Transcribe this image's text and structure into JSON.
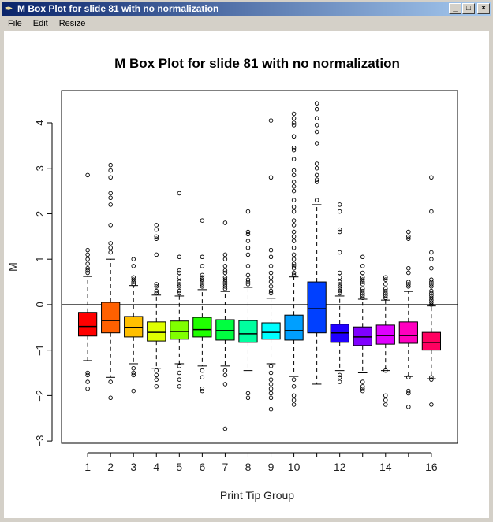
{
  "window": {
    "title": "M Box Plot for slide 81 with no normalization",
    "app_icon": "r-feather-icon",
    "buttons": [
      "minimize",
      "maximize",
      "close"
    ]
  },
  "menu": [
    "File",
    "Edit",
    "Resize"
  ],
  "chart_data": {
    "type": "box",
    "title": "M Box Plot for slide 81 with no normalization",
    "xlabel": "Print Tip Group",
    "ylabel": "M",
    "ylim": [
      -3.05,
      4.71
    ],
    "xlim": [
      0.5,
      16.5
    ],
    "yticks": [
      -3,
      -2,
      -1,
      0,
      1,
      2,
      3,
      4
    ],
    "xtick_labels": [
      "1",
      "2",
      "3",
      "4",
      "5",
      "6",
      "7",
      "8",
      "9",
      "10",
      "12",
      "14",
      "16"
    ],
    "xtick_positions": [
      1,
      2,
      3,
      4,
      5,
      6,
      7,
      8,
      9,
      10,
      12,
      14,
      16
    ],
    "reference_line_y": 0,
    "grid": false,
    "groups": [
      {
        "group": 1,
        "color": "#FF0000",
        "whisker_low": -1.23,
        "q1": -0.69,
        "median": -0.48,
        "q3": -0.17,
        "whisker_high": 0.62,
        "outliers": [
          2.85,
          1.2,
          1.1,
          1.0,
          0.9,
          0.8,
          0.75,
          0.7,
          -1.5,
          -1.55,
          -1.7,
          -1.85
        ]
      },
      {
        "group": 2,
        "color": "#FF6000",
        "whisker_low": -1.6,
        "q1": -0.62,
        "median": -0.35,
        "q3": 0.05,
        "whisker_high": 1.0,
        "outliers": [
          3.07,
          2.95,
          2.8,
          2.45,
          2.35,
          2.2,
          1.75,
          1.35,
          1.25,
          1.15,
          -1.7,
          -2.05
        ]
      },
      {
        "group": 3,
        "color": "#FFBF00",
        "whisker_low": -1.3,
        "q1": -0.71,
        "median": -0.5,
        "q3": -0.26,
        "whisker_high": 0.42,
        "outliers": [
          1.0,
          0.85,
          0.6,
          0.55,
          0.5,
          0.45,
          -1.4,
          -1.5,
          -1.55,
          -1.9
        ]
      },
      {
        "group": 4,
        "color": "#DFFF00",
        "whisker_low": -1.4,
        "q1": -0.8,
        "median": -0.61,
        "q3": -0.38,
        "whisker_high": 0.21,
        "outliers": [
          1.75,
          1.65,
          1.5,
          1.45,
          1.1,
          0.45,
          0.4,
          0.3,
          0.25,
          -1.45,
          -1.55,
          -1.65,
          -1.8
        ]
      },
      {
        "group": 5,
        "color": "#80FF00",
        "whisker_low": -1.3,
        "q1": -0.76,
        "median": -0.59,
        "q3": -0.36,
        "whisker_high": 0.19,
        "outliers": [
          2.45,
          1.05,
          0.75,
          0.7,
          0.6,
          0.5,
          0.45,
          0.4,
          0.3,
          0.25,
          -1.35,
          -1.5,
          -1.65,
          -1.8
        ]
      },
      {
        "group": 6,
        "color": "#20FF00",
        "whisker_low": -1.35,
        "q1": -0.71,
        "median": -0.55,
        "q3": -0.28,
        "whisker_high": 0.33,
        "outliers": [
          1.85,
          1.05,
          0.85,
          0.65,
          0.6,
          0.55,
          0.5,
          0.45,
          0.4,
          -1.45,
          -1.6,
          -1.85,
          -1.9
        ]
      },
      {
        "group": 7,
        "color": "#00FF40",
        "whisker_low": -1.35,
        "q1": -0.78,
        "median": -0.57,
        "q3": -0.33,
        "whisker_high": 0.29,
        "outliers": [
          1.8,
          1.1,
          1.0,
          0.85,
          0.75,
          0.7,
          0.6,
          0.55,
          0.5,
          0.45,
          0.4,
          0.35,
          -1.45,
          -1.55,
          -1.75,
          -2.73
        ]
      },
      {
        "group": 8,
        "color": "#00FF9F",
        "whisker_low": -1.45,
        "q1": -0.83,
        "median": -0.64,
        "q3": -0.35,
        "whisker_high": 0.38,
        "outliers": [
          2.05,
          1.6,
          1.55,
          1.4,
          1.25,
          1.1,
          0.85,
          0.65,
          0.55,
          0.5,
          0.45,
          -1.95,
          -2.05
        ]
      },
      {
        "group": 9,
        "color": "#00FFFF",
        "whisker_low": -1.3,
        "q1": -0.76,
        "median": -0.61,
        "q3": -0.4,
        "whisker_high": 0.14,
        "outliers": [
          4.05,
          2.8,
          1.2,
          1.05,
          0.85,
          0.7,
          0.6,
          0.5,
          0.4,
          0.3,
          0.25,
          -1.35,
          -1.5,
          -1.65,
          -1.75,
          -1.85,
          -1.95,
          -2.05,
          -2.3
        ]
      },
      {
        "group": 10,
        "color": "#009FFF",
        "whisker_low": -1.58,
        "q1": -0.78,
        "median": -0.57,
        "q3": -0.23,
        "whisker_high": 0.61,
        "outliers": [
          4.2,
          4.1,
          4.0,
          3.95,
          3.7,
          3.45,
          3.4,
          3.2,
          2.95,
          2.85,
          2.7,
          2.6,
          2.5,
          2.3,
          2.15,
          2.05,
          1.85,
          1.75,
          1.6,
          1.5,
          1.4,
          1.25,
          1.1,
          1.0,
          0.9,
          0.85,
          0.8,
          0.7,
          0.65,
          -1.65,
          -1.8,
          -2.0,
          -2.1,
          -2.2
        ]
      },
      {
        "group": 11,
        "color": "#0040FF",
        "whisker_low": -1.75,
        "q1": -0.62,
        "median": -0.09,
        "q3": 0.5,
        "whisker_high": 2.2,
        "outliers": [
          4.43,
          4.3,
          4.1,
          3.95,
          3.8,
          3.55,
          3.1,
          3.0,
          2.85,
          2.75,
          2.7,
          2.3
        ]
      },
      {
        "group": 12,
        "color": "#2000FF",
        "whisker_low": -1.45,
        "q1": -0.83,
        "median": -0.62,
        "q3": -0.43,
        "whisker_high": 0.19,
        "outliers": [
          2.2,
          2.05,
          1.65,
          1.6,
          1.15,
          0.7,
          0.6,
          0.5,
          0.45,
          0.4,
          0.35,
          0.3,
          0.25,
          -1.55,
          -1.6,
          -1.7
        ]
      },
      {
        "group": 13,
        "color": "#8000FF",
        "whisker_low": -1.5,
        "q1": -0.9,
        "median": -0.71,
        "q3": -0.49,
        "whisker_high": 0.12,
        "outliers": [
          1.05,
          0.85,
          0.7,
          0.6,
          0.55,
          0.5,
          0.45,
          0.35,
          0.3,
          0.25,
          0.2,
          0.15,
          -1.7,
          -1.8,
          -1.85,
          -1.9
        ]
      },
      {
        "group": 14,
        "color": "#DF00FF",
        "whisker_low": -1.45,
        "q1": -0.87,
        "median": -0.68,
        "q3": -0.45,
        "whisker_high": 0.1,
        "outliers": [
          0.6,
          0.55,
          0.45,
          0.35,
          0.3,
          0.25,
          0.2,
          0.15,
          -1.45,
          -2.0,
          -2.1,
          -2.2
        ]
      },
      {
        "group": 15,
        "color": "#FF00BF",
        "whisker_low": -1.58,
        "q1": -0.85,
        "median": -0.68,
        "q3": -0.38,
        "whisker_high": 0.29,
        "outliers": [
          1.6,
          1.5,
          1.45,
          0.8,
          0.7,
          0.5,
          0.45,
          0.4,
          -1.6,
          -1.9,
          -1.95,
          -2.25
        ]
      },
      {
        "group": 16,
        "color": "#FF0060",
        "whisker_low": -1.63,
        "q1": -1.0,
        "median": -0.83,
        "q3": -0.61,
        "whisker_high": -0.03,
        "outliers": [
          2.8,
          2.05,
          1.15,
          1.0,
          0.8,
          0.55,
          0.5,
          0.45,
          0.4,
          0.3,
          0.25,
          0.2,
          0.15,
          0.1,
          0.05,
          0.0,
          -1.6,
          -1.65,
          -2.2
        ]
      }
    ]
  }
}
